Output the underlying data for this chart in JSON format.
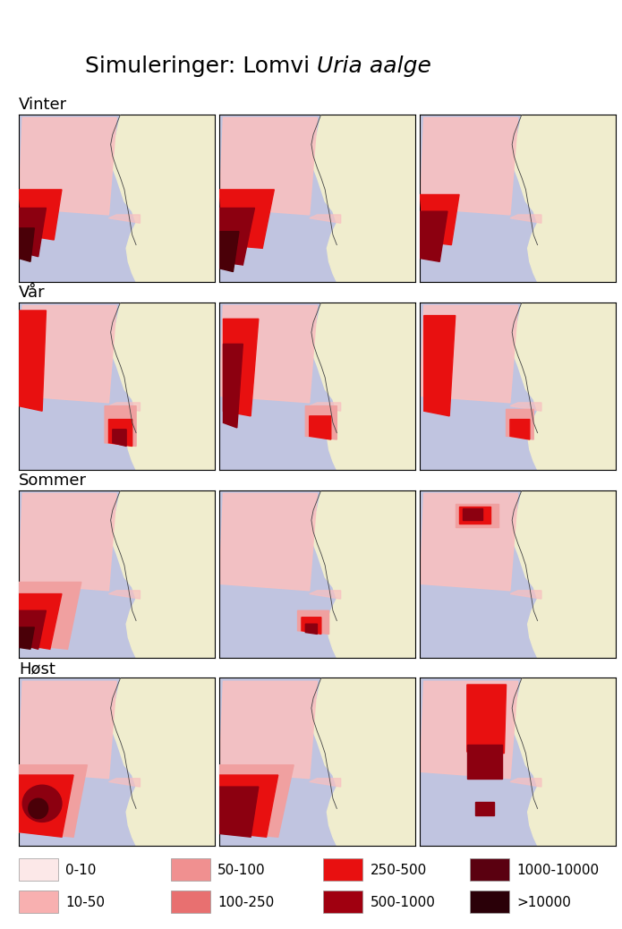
{
  "title_normal": "Simuleringer: Lomvi ",
  "title_italic": "Uria aalge",
  "seasons": [
    "Vinter",
    "Vår",
    "Sommer",
    "Høst"
  ],
  "n_cols": 3,
  "n_rows": 4,
  "background_color": "#ffffff",
  "sea_color": "#c0c4e0",
  "land_color": "#f0edce",
  "denmark_color": "#f0edce",
  "pink_very_light": "#fce8e8",
  "pink_light": "#f8c0c0",
  "pink_med": "#f0a0a0",
  "red_bright": "#e81010",
  "red_dark": "#8c0010",
  "red_darker": "#4a0008",
  "legend_labels": [
    "0-10",
    "10-50",
    "50-100",
    "100-250",
    "250-500",
    "500-1000",
    "1000-10000",
    ">10000"
  ],
  "legend_colors": [
    "#fce8e8",
    "#f8b0b0",
    "#f09090",
    "#e87070",
    "#e81010",
    "#a00010",
    "#5a0010",
    "#2a0008"
  ],
  "title_fontsize": 18,
  "season_fontsize": 13,
  "legend_fontsize": 11
}
